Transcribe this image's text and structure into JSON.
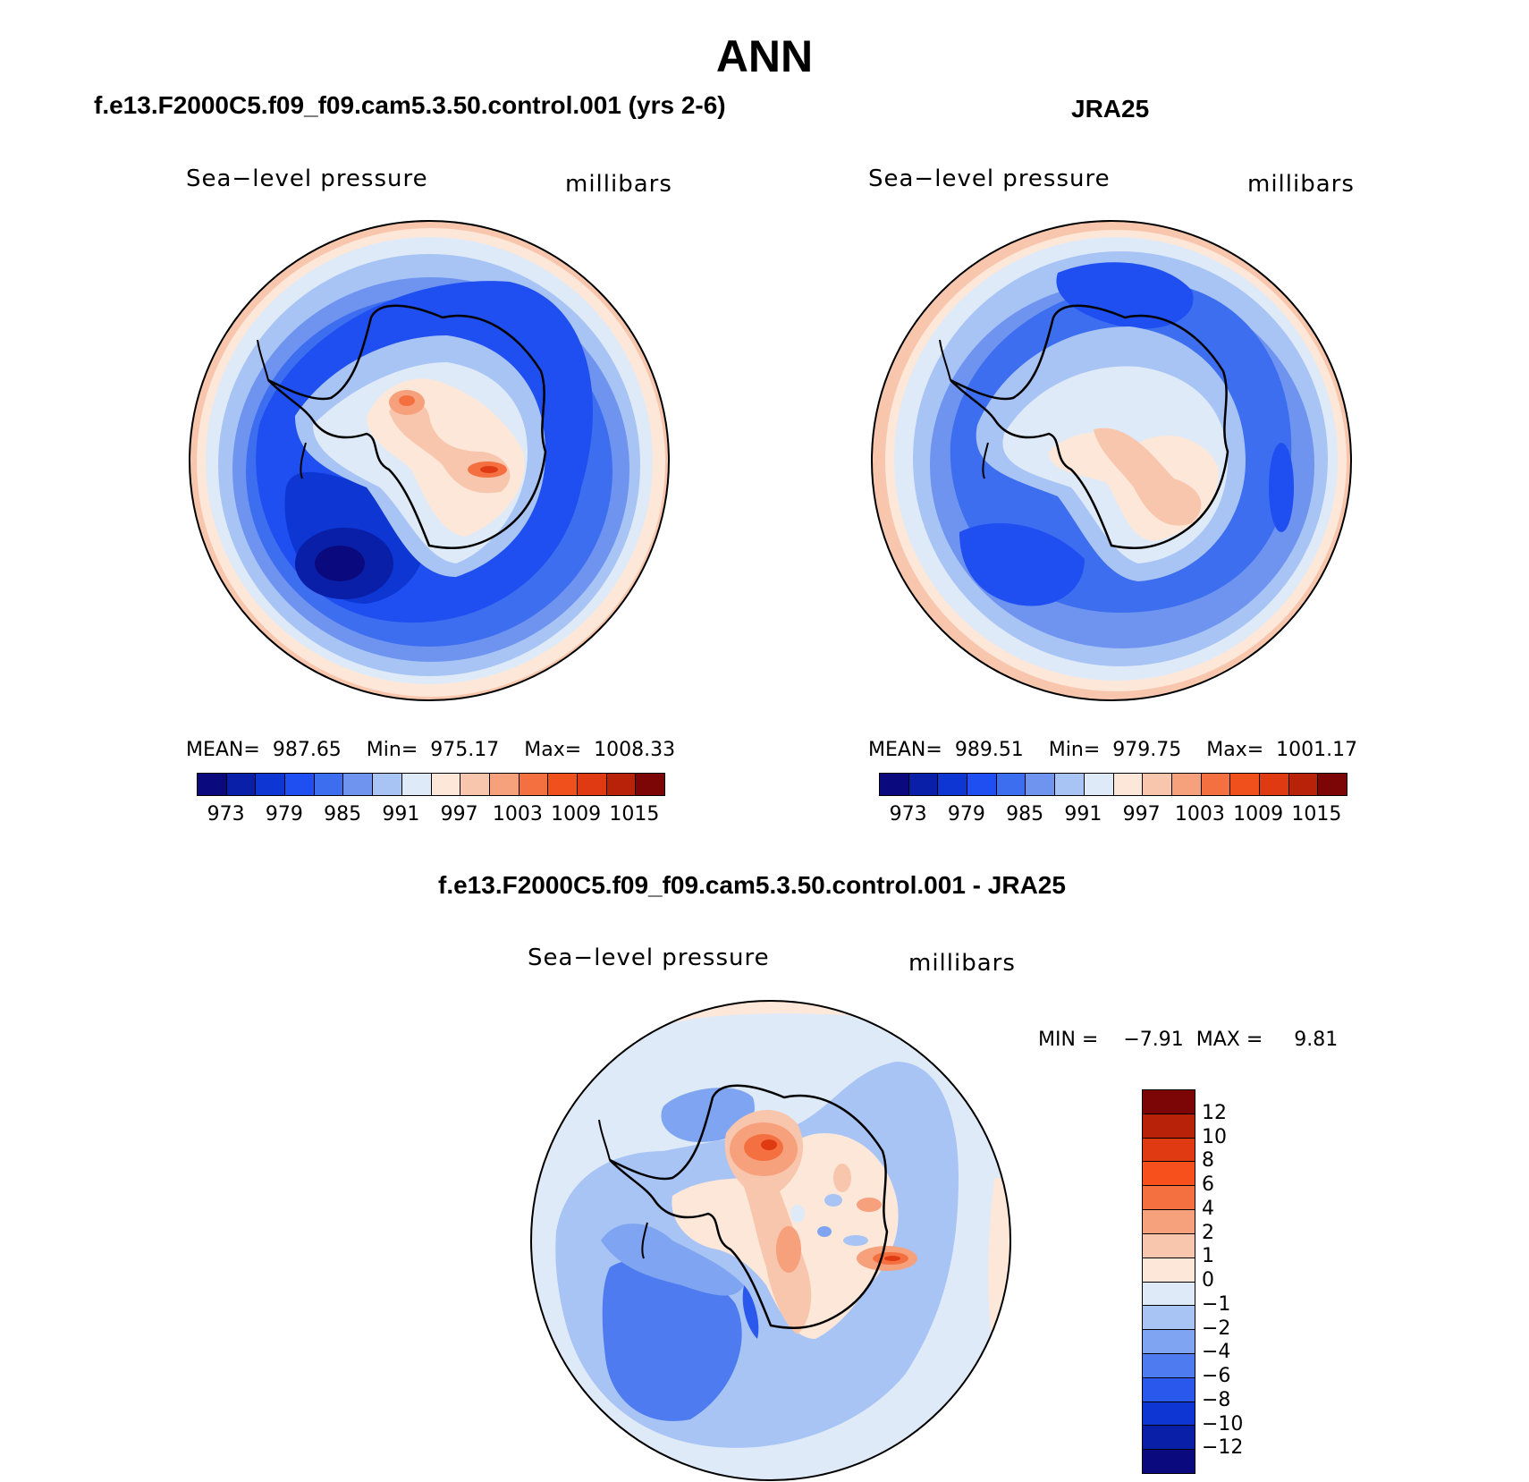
{
  "title": "ANN",
  "panels": {
    "model": {
      "title": "f.e13.F2000C5.f09_f09.cam5.3.50.control.001 (yrs 2-6)",
      "variable": "Sea−level pressure",
      "units": "millibars",
      "stats": {
        "mean_label": "MEAN=",
        "mean": "987.65",
        "min_label": "Min=",
        "min": "975.17",
        "max_label": "Max=",
        "max": "1008.33"
      }
    },
    "obs": {
      "title": "JRA25",
      "variable": "Sea−level pressure",
      "units": "millibars",
      "stats": {
        "mean_label": "MEAN=",
        "mean": "989.51",
        "min_label": "Min=",
        "min": "979.75",
        "max_label": "Max=",
        "max": "1001.17"
      }
    },
    "diff": {
      "title": "f.e13.F2000C5.f09_f09.cam5.3.50.control.001 - JRA25",
      "variable": "Sea−level pressure",
      "units": "millibars",
      "stats": {
        "min_label": "MIN =",
        "min": "−7.91",
        "max_label": "MAX =",
        "max": "9.81"
      }
    }
  },
  "colorbar_abs": {
    "colors": [
      "#0a0a7e",
      "#0a1fa8",
      "#0d36d2",
      "#1f4ff0",
      "#3e6ef0",
      "#6e94f0",
      "#a8c4f5",
      "#dfeaf8",
      "#fde7d8",
      "#f8c6ad",
      "#f6a07c",
      "#f47040",
      "#f0501c",
      "#e03a12",
      "#b82208",
      "#7c0606"
    ],
    "ticks": [
      "973",
      "979",
      "985",
      "991",
      "997",
      "1003",
      "1009",
      "1015"
    ]
  },
  "colorbar_diff": {
    "colors": [
      "#7c0606",
      "#b82208",
      "#e03a12",
      "#f8501c",
      "#f47040",
      "#f6a07c",
      "#f8c6ad",
      "#fde7d8",
      "#dfeaf8",
      "#a8c4f5",
      "#7ea4f2",
      "#4e7cf0",
      "#2a58ec",
      "#0d36d2",
      "#0a1fa8",
      "#0a0a7e"
    ],
    "ticks": [
      "12",
      "10",
      "8",
      "6",
      "4",
      "2",
      "1",
      "0",
      "−1",
      "−2",
      "−4",
      "−6",
      "−8",
      "−10",
      "−12"
    ]
  }
}
